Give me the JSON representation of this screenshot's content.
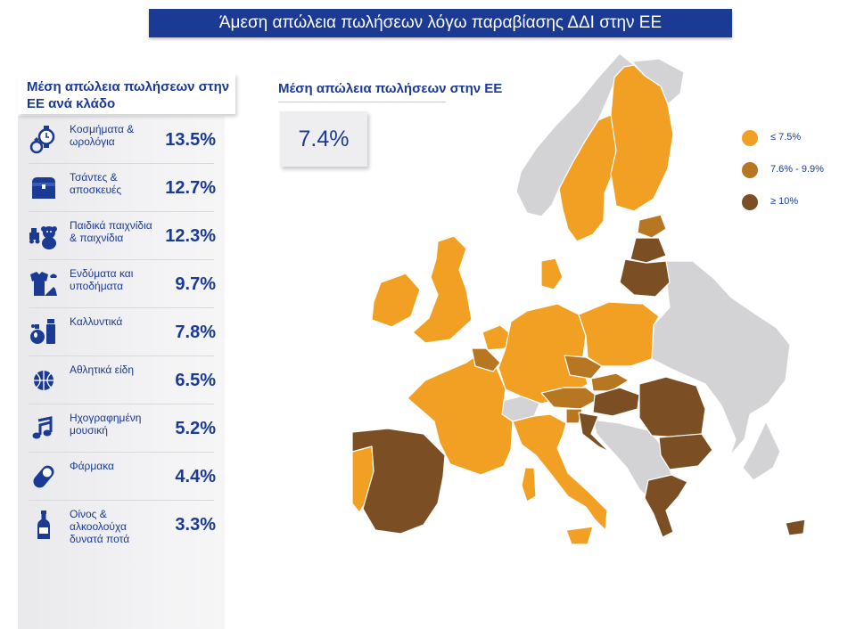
{
  "title": "Άμεση απώλεια πωλήσεων λόγω παραβίασης ΔΔΙ στην ΕΕ",
  "sector_panel": {
    "heading": "Μέση απώλεια πωλήσεων στην ΕΕ ανά κλάδο",
    "rows": [
      {
        "label": "Κοσμήματα & ωρολόγια",
        "value": "13.5%",
        "icon": "watch-ring-icon"
      },
      {
        "label": "Τσάντες & αποσκευές",
        "value": "12.7%",
        "icon": "bag-icon"
      },
      {
        "label": "Παιδικά παιχνίδια & παιχνίδια",
        "value": "12.3%",
        "icon": "toy-icon"
      },
      {
        "label": "Ενδύματα και υποδήματα",
        "value": "9.7%",
        "icon": "clothing-icon"
      },
      {
        "label": "Καλλυντικά",
        "value": "7.8%",
        "icon": "cosmetics-icon"
      },
      {
        "label": "Αθλητικά είδη",
        "value": "6.5%",
        "icon": "ball-icon"
      },
      {
        "label": "Ηχογραφημένη μουσική",
        "value": "5.2%",
        "icon": "music-note-icon"
      },
      {
        "label": "Φάρμακα",
        "value": "4.4%",
        "icon": "pill-icon"
      },
      {
        "label": "Οίνος & αλκοολούχα δυνατά ποτά",
        "value": "3.3%",
        "icon": "bottle-icon"
      }
    ]
  },
  "eu_average": {
    "heading": "Μέση απώλεια πωλήσεων στην ΕΕ",
    "value": "7.4%"
  },
  "legend": [
    {
      "label": "≤ 7.5%",
      "color": "#f2a024"
    },
    {
      "label": "7.6% - 9.9%",
      "color": "#b77622"
    },
    {
      "label": "≥ 10%",
      "color": "#7b4f23"
    }
  ],
  "colors": {
    "brand_blue": "#1a3a93",
    "low": "#f2a024",
    "mid": "#b77622",
    "high": "#7b4f23",
    "non_eu": "#d3d3d6"
  }
}
